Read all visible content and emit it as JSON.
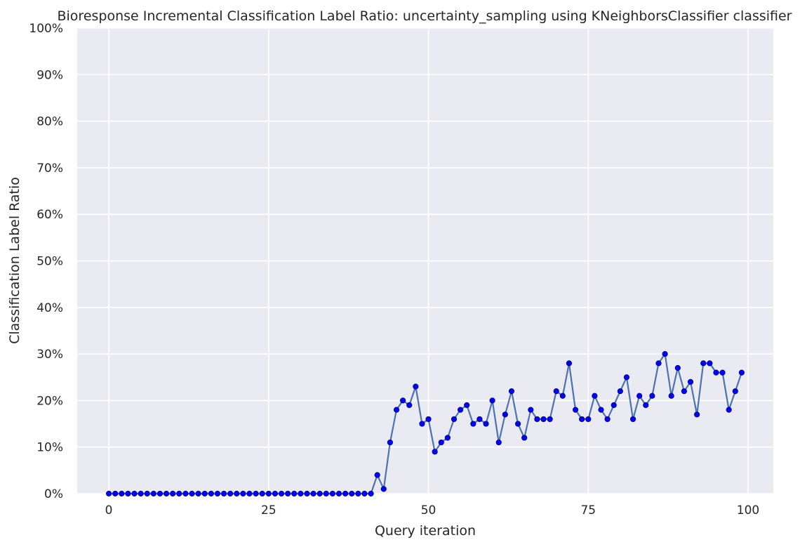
{
  "chart_data": {
    "type": "line",
    "title": "Bioresponse Incremental Classification Label Ratio: uncertainty_sampling using KNeighborsClassifier classifier",
    "xlabel": "Query iteration",
    "ylabel": "Classification Label Ratio",
    "xlim": [
      -4.95,
      103.95
    ],
    "ylim": [
      0,
      1
    ],
    "x_ticks": [
      0,
      25,
      50,
      75,
      100
    ],
    "x_tick_labels": [
      "0",
      "25",
      "50",
      "75",
      "100"
    ],
    "y_ticks": [
      0,
      0.1,
      0.2,
      0.3,
      0.4,
      0.5,
      0.6,
      0.7,
      0.8,
      0.9,
      1.0
    ],
    "y_tick_labels": [
      "0%",
      "10%",
      "20%",
      "30%",
      "40%",
      "50%",
      "60%",
      "70%",
      "80%",
      "90%",
      "100%"
    ],
    "grid": true,
    "legend": "none",
    "colors": {
      "background": "#eaeaf2",
      "grid": "#ffffff",
      "line": "#4c72b0",
      "marker_fill": "#0000ff",
      "marker_edge": "#00008b"
    },
    "series": [
      {
        "x": [
          0,
          1,
          2,
          3,
          4,
          5,
          6,
          7,
          8,
          9,
          10,
          11,
          12,
          13,
          14,
          15,
          16,
          17,
          18,
          19,
          20,
          21,
          22,
          23,
          24,
          25,
          26,
          27,
          28,
          29,
          30,
          31,
          32,
          33,
          34,
          35,
          36,
          37,
          38,
          39,
          40,
          41,
          42,
          43,
          44,
          45,
          46,
          47,
          48,
          49,
          50,
          51,
          52,
          53,
          54,
          55,
          56,
          57,
          58,
          59,
          60,
          61,
          62,
          63,
          64,
          65,
          66,
          67,
          68,
          69,
          70,
          71,
          72,
          73,
          74,
          75,
          76,
          77,
          78,
          79,
          80,
          81,
          82,
          83,
          84,
          85,
          86,
          87,
          88,
          89,
          90,
          91,
          92,
          93,
          94,
          95,
          96,
          97,
          98,
          99
        ],
        "values": [
          0,
          0,
          0,
          0,
          0,
          0,
          0,
          0,
          0,
          0,
          0,
          0,
          0,
          0,
          0,
          0,
          0,
          0,
          0,
          0,
          0,
          0,
          0,
          0,
          0,
          0,
          0,
          0,
          0,
          0,
          0,
          0,
          0,
          0,
          0,
          0,
          0,
          0,
          0,
          0,
          0,
          0,
          0.04,
          0.01,
          0.11,
          0.18,
          0.2,
          0.19,
          0.23,
          0.15,
          0.16,
          0.09,
          0.11,
          0.12,
          0.16,
          0.18,
          0.19,
          0.15,
          0.16,
          0.15,
          0.2,
          0.11,
          0.17,
          0.22,
          0.15,
          0.12,
          0.18,
          0.16,
          0.16,
          0.16,
          0.22,
          0.21,
          0.28,
          0.18,
          0.16,
          0.16,
          0.21,
          0.18,
          0.16,
          0.19,
          0.22,
          0.25,
          0.16,
          0.21,
          0.19,
          0.21,
          0.28,
          0.3,
          0.21,
          0.27,
          0.22,
          0.24,
          0.17,
          0.28,
          0.28,
          0.26,
          0.26,
          0.18,
          0.22,
          0.26
        ]
      }
    ]
  }
}
